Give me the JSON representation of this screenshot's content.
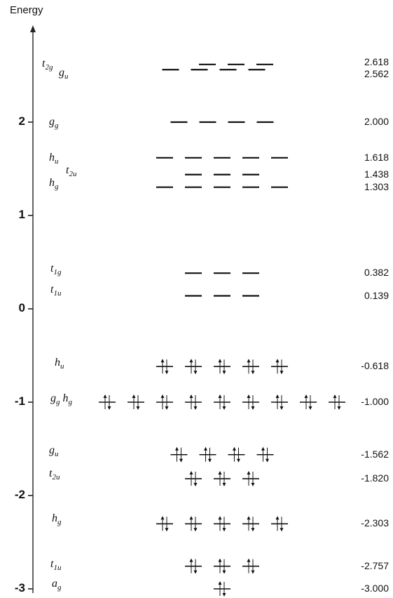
{
  "title": "Energy",
  "axis_ticks": [
    {
      "value": 2,
      "label": "2"
    },
    {
      "value": 1,
      "label": "1"
    },
    {
      "value": 0,
      "label": "0"
    },
    {
      "value": -1,
      "label": "-1"
    },
    {
      "value": -2,
      "label": "-2"
    },
    {
      "value": -3,
      "label": "-3"
    }
  ],
  "levels": [
    {
      "name": "t2g",
      "symbol": "t",
      "subscript": "2g",
      "energy": 2.618,
      "value_label": "2.618",
      "count": 3,
      "occupied": false
    },
    {
      "name": "gu",
      "symbol": "g",
      "subscript": "u",
      "energy": 2.562,
      "value_label": "2.562",
      "count": 4,
      "occupied": false
    },
    {
      "name": "gg",
      "symbol": "g",
      "subscript": "g",
      "energy": 2.0,
      "value_label": "2.000",
      "count": 4,
      "occupied": false
    },
    {
      "name": "hu",
      "symbol": "h",
      "subscript": "u",
      "energy": 1.618,
      "value_label": "1.618",
      "count": 5,
      "occupied": false
    },
    {
      "name": "t2u",
      "symbol": "t",
      "subscript": "2u",
      "energy": 1.438,
      "value_label": "1.438",
      "count": 3,
      "occupied": false
    },
    {
      "name": "hg",
      "symbol": "h",
      "subscript": "g",
      "energy": 1.303,
      "value_label": "1.303",
      "count": 5,
      "occupied": false
    },
    {
      "name": "t1g",
      "symbol": "t",
      "subscript": "1g",
      "energy": 0.382,
      "value_label": "0.382",
      "count": 3,
      "occupied": false
    },
    {
      "name": "t1u",
      "symbol": "t",
      "subscript": "1u",
      "energy": 0.139,
      "value_label": "0.139",
      "count": 3,
      "occupied": false
    },
    {
      "name": "hu-occ",
      "symbol": "h",
      "subscript": "u",
      "energy": -0.618,
      "value_label": "-0.618",
      "count": 5,
      "occupied": true
    },
    {
      "name": "gg-hg",
      "symbol": "g",
      "subscript": "g",
      "symbol2": "h",
      "subscript2": "g",
      "energy": -1.0,
      "value_label": "-1.000",
      "count": 9,
      "occupied": true
    },
    {
      "name": "gu-occ",
      "symbol": "g",
      "subscript": "u",
      "energy": -1.562,
      "value_label": "-1.562",
      "count": 4,
      "occupied": true
    },
    {
      "name": "t2u-occ",
      "symbol": "t",
      "subscript": "2u",
      "energy": -1.82,
      "value_label": "-1.820",
      "count": 3,
      "occupied": true
    },
    {
      "name": "hg-occ",
      "symbol": "h",
      "subscript": "g",
      "energy": -2.303,
      "value_label": "-2.303",
      "count": 5,
      "occupied": true
    },
    {
      "name": "t1u-occ",
      "symbol": "t",
      "subscript": "1u",
      "energy": -2.757,
      "value_label": "-2.757",
      "count": 3,
      "occupied": true
    },
    {
      "name": "ag",
      "symbol": "a",
      "subscript": "g",
      "energy": -3.0,
      "value_label": "-3.000",
      "count": 1,
      "occupied": true
    }
  ]
}
